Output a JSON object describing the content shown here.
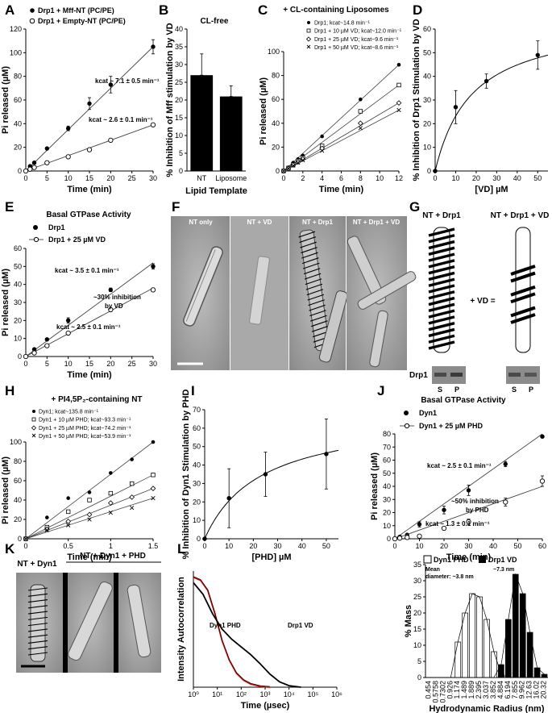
{
  "panel_labels": [
    "A",
    "B",
    "C",
    "D",
    "E",
    "F",
    "G",
    "H",
    "I",
    "J",
    "K",
    "L"
  ],
  "panel_A": {
    "legend": [
      "Drp1 + Mff-NT (PC/PE)",
      "Drp1 + Empty-NT (PC/PE)"
    ],
    "kcat": [
      "kcat ~ 7.1 ± 0.5 min⁻¹",
      "kcat ~ 2.6 ± 0.1 min⁻¹"
    ]
  },
  "panel_B": {
    "title": "CL-free"
  },
  "panel_C": {
    "title": "+ CL-containing Liposomes",
    "legend": [
      "Drp1; kcat~14.8 min⁻¹",
      "Drp1 + 10 µM VD; kcat~12.0 min⁻¹",
      "Drp1 + 25 µM VD; kcat~9.6 min⁻¹",
      "Drp1 + 50 µM VD; kcat~8.6 min⁻¹"
    ]
  },
  "panel_E": {
    "title": "Basal GTPase Activity",
    "legend": [
      "Drp1",
      "Drp1 + 25 µM VD"
    ],
    "kcat": [
      "kcat ~ 3.5 ± 0.1 min⁻¹",
      "kcat ~ 2.5 ± 0.1 min⁻¹"
    ],
    "note": [
      "~30% inhibition",
      "by VD"
    ]
  },
  "panel_F": {
    "labels": [
      "NT only",
      "NT + VD",
      "NT + Drp1",
      "NT + Drp1 + VD"
    ]
  },
  "panel_G": {
    "labels": [
      "NT + Drp1",
      "NT + Drp1 + VD"
    ],
    "plus": "+ VD =",
    "protein": "Drp1",
    "lanes": [
      "S",
      "P",
      "S",
      "P"
    ]
  },
  "panel_H": {
    "title": "+ PI4,5P₂-containing NT",
    "legend": [
      "Dyn1; kcat~135.8 min⁻¹",
      "Dyn1 + 10 µM PHD; kcat~93.3 min⁻¹",
      "Dyn1 + 25 µM PHD; kcat~74.2 min⁻¹",
      "Dyn1 + 50 µM PHD; kcat~53.9 min⁻¹"
    ]
  },
  "panel_J": {
    "title": "Basal GTPase Activity",
    "legend": [
      "Dyn1",
      "Dyn1 + 25 µM PHD"
    ],
    "kcat": [
      "kcat ~ 2.5 ± 0.1 min⁻¹",
      "kcat ~ 1.3 ± 0.1 min⁻¹"
    ],
    "note": [
      "~50% inhibition",
      "by PHD"
    ]
  },
  "panel_K": {
    "labels": [
      "NT + Dyn1",
      "NT + Dyn1 + PHD"
    ]
  },
  "panel_L": {
    "curve_labels": [
      "Dyn1 PHD",
      "Drp1 VD"
    ],
    "legend": [
      "Dyn1 PHD",
      "Drp1 VD"
    ],
    "mean1": [
      "Mean",
      "diameter: ~3.8 nm"
    ],
    "mean2": "~7.3 nm"
  },
  "chart_data": [
    {
      "panel": "A",
      "type": "scatter",
      "xlabel": "Time (min)",
      "ylabel": "Pi released (µM)",
      "xlim": [
        0,
        30
      ],
      "ylim": [
        0,
        120
      ],
      "xticks": [
        0,
        5,
        10,
        15,
        20,
        25,
        30
      ],
      "yticks": [
        0,
        20,
        40,
        60,
        80,
        100,
        120
      ],
      "series": [
        {
          "name": "Drp1 + Mff-NT (PC/PE)",
          "marker": "filled",
          "x": [
            0,
            1,
            2,
            5,
            10,
            15,
            20,
            30
          ],
          "y": [
            0,
            4,
            7,
            19,
            36,
            57,
            73,
            105
          ],
          "err": [
            0,
            0,
            1,
            1,
            2,
            5,
            7,
            6
          ],
          "fit": [
            0,
            105
          ]
        },
        {
          "name": "Drp1 + Empty-NT (PC/PE)",
          "marker": "open",
          "x": [
            0,
            1,
            2,
            5,
            10,
            15,
            20,
            30
          ],
          "y": [
            0,
            1.5,
            3,
            7,
            12,
            18,
            26,
            39
          ],
          "err": [
            0,
            0,
            0,
            0,
            1,
            1,
            1,
            1
          ],
          "fit": [
            0,
            39
          ]
        }
      ]
    },
    {
      "panel": "B",
      "type": "bar",
      "title": "CL-free",
      "xlabel": "Lipid Template",
      "ylabel": "% Inhibition of Mff stimulation by VD",
      "categories": [
        "NT",
        "Liposome"
      ],
      "values": [
        27,
        21
      ],
      "err": [
        6,
        3
      ],
      "ylim": [
        0,
        40
      ],
      "yticks": [
        0,
        5,
        10,
        15,
        20,
        25,
        30,
        35,
        40
      ]
    },
    {
      "panel": "C",
      "type": "scatter",
      "title": "+ CL-containing Liposomes",
      "xlabel": "Time (min)",
      "ylabel": "Pi released (µM)",
      "xlim": [
        0,
        12
      ],
      "ylim": [
        0,
        100
      ],
      "xticks": [
        0,
        2,
        4,
        6,
        8,
        10,
        12
      ],
      "yticks": [
        0,
        20,
        40,
        60,
        80,
        100
      ],
      "x": [
        0,
        0.5,
        1,
        1.5,
        2,
        4,
        8,
        12
      ],
      "series": [
        {
          "name": "Drp1; kcat~14.8 min⁻¹",
          "marker": "filled",
          "y": [
            0,
            3,
            7,
            10,
            13,
            29,
            60,
            89
          ]
        },
        {
          "name": "Drp1 + 10 µM VD; kcat~12.0 min⁻¹",
          "marker": "square",
          "y": [
            0,
            2.5,
            5.5,
            8.5,
            11,
            21,
            50,
            72
          ]
        },
        {
          "name": "Drp1 + 25 µM VD; kcat~9.6 min⁻¹",
          "marker": "diamond",
          "y": [
            0,
            2,
            5,
            7.5,
            10,
            19,
            40,
            57
          ]
        },
        {
          "name": "Drp1 + 50 µM VD; kcat~8.6 min⁻¹",
          "marker": "cross",
          "y": [
            0,
            2,
            4.5,
            7,
            9,
            17,
            36,
            51
          ]
        }
      ]
    },
    {
      "panel": "D",
      "type": "scatter",
      "xlabel": "[VD] µM",
      "ylabel": "% Inhibition of Drp1 Stimulation by VD",
      "xlim": [
        0,
        55
      ],
      "ylim": [
        0,
        60
      ],
      "xticks": [
        0,
        10,
        20,
        30,
        40,
        50
      ],
      "yticks": [
        0,
        10,
        20,
        30,
        40,
        50,
        60
      ],
      "x": [
        0,
        10,
        25,
        50
      ],
      "y": [
        0,
        27,
        38,
        49
      ],
      "err": [
        0,
        7,
        3,
        6
      ],
      "fit": {
        "vmax": 65,
        "k": 18
      }
    },
    {
      "panel": "E",
      "type": "scatter",
      "title": "Basal GTPase Activity",
      "xlabel": "Time (min)",
      "ylabel": "Pi released (µM)",
      "xlim": [
        0,
        30
      ],
      "ylim": [
        0,
        60
      ],
      "xticks": [
        0,
        5,
        10,
        15,
        20,
        25,
        30
      ],
      "yticks": [
        0,
        10,
        20,
        30,
        40,
        50,
        60
      ],
      "series": [
        {
          "name": "Drp1",
          "marker": "filled",
          "x": [
            0,
            2,
            5,
            10,
            20,
            30
          ],
          "y": [
            0,
            4,
            9.5,
            20,
            37,
            50
          ],
          "err": [
            0,
            0.5,
            0.5,
            1.5,
            1,
            1.5
          ],
          "fit": [
            0,
            52
          ]
        },
        {
          "name": "Drp1 + 25 µM VD",
          "marker": "open",
          "x": [
            0,
            2,
            5,
            10,
            20,
            30
          ],
          "y": [
            0,
            2,
            6,
            13,
            26,
            37
          ],
          "err": [
            0,
            0,
            0.5,
            0.5,
            0.5,
            1
          ],
          "fit": [
            0,
            38
          ]
        }
      ]
    },
    {
      "panel": "H",
      "type": "scatter",
      "title": "+ PI4,5P₂-containing NT",
      "xlabel": "Time (min)",
      "ylabel": "Pi released (µM)",
      "xlim": [
        0,
        1.5
      ],
      "ylim": [
        0,
        100
      ],
      "xticks": [
        0,
        0.5,
        1,
        1.5
      ],
      "yticks": [
        0,
        20,
        40,
        60,
        80,
        100
      ],
      "x": [
        0,
        0.25,
        0.5,
        0.75,
        1,
        1.25,
        1.5
      ],
      "series": [
        {
          "name": "Dyn1; kcat~135.8 min⁻¹",
          "marker": "filled",
          "y": [
            0,
            22,
            42,
            48,
            68,
            82,
            100
          ]
        },
        {
          "name": "Dyn1 + 10 µM PHD; kcat~93.3 min⁻¹",
          "marker": "square",
          "y": [
            0,
            12,
            28,
            40,
            47,
            57,
            66
          ]
        },
        {
          "name": "Dyn1 + 25 µM PHD; kcat~74.2 min⁻¹",
          "marker": "diamond",
          "y": [
            0,
            10,
            18,
            25,
            37,
            43,
            52
          ]
        },
        {
          "name": "Dyn1 + 50 µM PHD; kcat~53.9 min⁻¹",
          "marker": "cross",
          "y": [
            0,
            9,
            14,
            20,
            27,
            32,
            42
          ]
        }
      ]
    },
    {
      "panel": "I",
      "type": "scatter",
      "xlabel": "[PHD] µM",
      "ylabel": "% Inhibition of Dyn1 Stimulation by PHD",
      "xlim": [
        0,
        55
      ],
      "ylim": [
        0,
        70
      ],
      "xticks": [
        0,
        10,
        20,
        30,
        40,
        50
      ],
      "yticks": [
        0,
        10,
        20,
        30,
        40,
        50,
        60,
        70
      ],
      "x": [
        0,
        10,
        25,
        50
      ],
      "y": [
        0,
        22,
        35,
        46
      ],
      "err": [
        0,
        16,
        12,
        19
      ],
      "fit": {
        "vmax": 68,
        "k": 23
      }
    },
    {
      "panel": "J",
      "type": "scatter",
      "title": "Basal GTPase Activity",
      "xlabel": "Time (min)",
      "ylabel": "Pi released (µM)",
      "xlim": [
        0,
        60
      ],
      "ylim": [
        0,
        80
      ],
      "xticks": [
        0,
        10,
        20,
        30,
        40,
        50,
        60
      ],
      "yticks": [
        0,
        10,
        20,
        30,
        40,
        50,
        60,
        70,
        80
      ],
      "series": [
        {
          "name": "Dyn1",
          "marker": "filled",
          "x": [
            0,
            2,
            5,
            10,
            20,
            30,
            45,
            60
          ],
          "y": [
            0,
            1.5,
            3,
            11,
            22,
            37,
            57,
            78
          ],
          "err": [
            0,
            0,
            0.5,
            2,
            3,
            4,
            2,
            1
          ],
          "fit": [
            0,
            80
          ]
        },
        {
          "name": "Dyn1 + 25 µM PHD",
          "marker": "open",
          "x": [
            0,
            2,
            5,
            10,
            20,
            30,
            45,
            60
          ],
          "y": [
            0,
            0.5,
            1,
            2,
            8,
            13,
            28,
            44
          ],
          "err": [
            0,
            0,
            0,
            0.5,
            1,
            2,
            3,
            4
          ],
          "fit": [
            0,
            40
          ]
        }
      ]
    },
    {
      "panel": "L1",
      "type": "line",
      "xlabel": "Time (µsec)",
      "ylabel": "Intensity Autocorrelation",
      "xscale": "log",
      "xlim": [
        1,
        1000000
      ],
      "xticks": [
        "10⁰",
        "10¹",
        "10²",
        "10³",
        "10⁴",
        "10⁵",
        "10⁶"
      ],
      "series": [
        {
          "name": "Dyn1 PHD",
          "log10x": [
            0,
            0.3,
            0.6,
            0.9,
            1.2,
            1.5,
            1.8,
            2.1,
            2.4,
            2.8,
            3.2
          ],
          "y": [
            1.42,
            1.38,
            1.25,
            0.95,
            0.6,
            0.35,
            0.18,
            0.09,
            0.04,
            0.01,
            0
          ]
        },
        {
          "name": "Drp1 VD",
          "log10x": [
            0,
            0.4,
            0.8,
            1.2,
            1.6,
            2.0,
            2.4,
            2.8,
            3.2,
            3.6,
            4.0,
            4.5
          ],
          "y": [
            1.35,
            1.2,
            0.95,
            0.75,
            0.62,
            0.52,
            0.42,
            0.3,
            0.17,
            0.07,
            0.02,
            0
          ]
        }
      ]
    },
    {
      "panel": "L2",
      "type": "bar",
      "xlabel": "Hydrodynamic Radius (nm)",
      "ylabel": "% Mass",
      "ylim": [
        0,
        35
      ],
      "yticks": [
        0,
        5,
        10,
        15,
        20,
        25,
        30,
        35
      ],
      "categories": [
        "0.454",
        "0.5758",
        "0.7302",
        "0.926",
        "1.174",
        "1.489",
        "1.889",
        "2.395",
        "3.037",
        "3.852",
        "4.884",
        "6.194",
        "7.855",
        "9.962",
        "12.63",
        "16.02",
        "20.32"
      ],
      "series": [
        {
          "name": "Dyn1 PHD",
          "fill": "open",
          "values": [
            0,
            0,
            0,
            0,
            11,
            20,
            26,
            25,
            18,
            8,
            1,
            0,
            0,
            0,
            0,
            0,
            0
          ]
        },
        {
          "name": "Drp1 VD",
          "fill": "filled",
          "values": [
            0,
            0,
            0,
            0,
            0,
            0,
            0,
            0,
            0,
            0,
            4,
            18,
            32,
            26,
            14,
            3,
            1
          ]
        }
      ]
    }
  ]
}
